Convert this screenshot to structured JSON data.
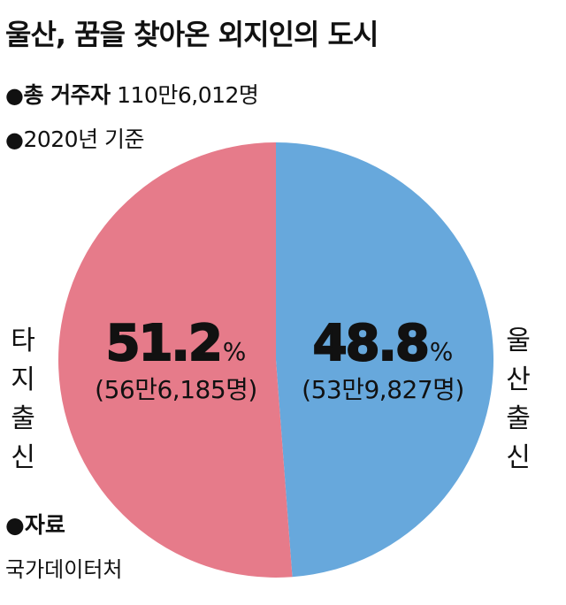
{
  "title": "울산, 꿈을 찾아온 외지인의 도시",
  "info": {
    "bullet": "●",
    "total_label": "총 거주자",
    "total_value": "110만6,012명",
    "basis": "2020년 기준"
  },
  "source": {
    "label": "자료",
    "name": "국가데이터처"
  },
  "chart_data": {
    "type": "pie",
    "slices": [
      {
        "label_line1": "울산",
        "label_line2": "출신",
        "percent": 48.8,
        "percent_text": "48.8",
        "count_text": "(53만9,827명)",
        "color": "#67a8dc"
      },
      {
        "label_line1": "타지",
        "label_line2": "출신",
        "percent": 51.2,
        "percent_text": "51.2",
        "count_text": "(56만6,185명)",
        "color": "#e67b8a"
      }
    ],
    "unit": "%",
    "start_angle_deg": 0,
    "direction": "clockwise"
  }
}
